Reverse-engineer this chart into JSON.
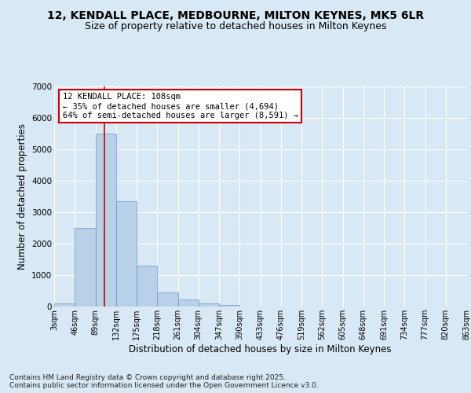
{
  "title_line1": "12, KENDALL PLACE, MEDBOURNE, MILTON KEYNES, MK5 6LR",
  "title_line2": "Size of property relative to detached houses in Milton Keynes",
  "xlabel": "Distribution of detached houses by size in Milton Keynes",
  "ylabel": "Number of detached properties",
  "footer_line1": "Contains HM Land Registry data © Crown copyright and database right 2025.",
  "footer_line2": "Contains public sector information licensed under the Open Government Licence v3.0.",
  "bar_color": "#b8d0e8",
  "bar_edge_color": "#6699cc",
  "background_color": "#d8e8f4",
  "plot_bg_color": "#d8e8f4",
  "annotation_box_color": "#cc0000",
  "vline_color": "#cc0000",
  "vline_x": 108,
  "annotation_text_line1": "12 KENDALL PLACE: 108sqm",
  "annotation_text_line2": "← 35% of detached houses are smaller (4,694)",
  "annotation_text_line3": "64% of semi-detached houses are larger (8,591) →",
  "bin_edges": [
    3,
    46,
    89,
    132,
    175,
    218,
    261,
    304,
    347,
    390,
    433,
    476,
    519,
    562,
    605,
    648,
    691,
    734,
    777,
    820,
    863
  ],
  "bar_heights": [
    100,
    2500,
    5500,
    3350,
    1300,
    450,
    230,
    100,
    50,
    0,
    0,
    0,
    0,
    0,
    0,
    0,
    0,
    0,
    0,
    0
  ],
  "ylim": [
    0,
    7000
  ],
  "yticks": [
    0,
    1000,
    2000,
    3000,
    4000,
    5000,
    6000,
    7000
  ],
  "tick_labels": [
    "3sqm",
    "46sqm",
    "89sqm",
    "132sqm",
    "175sqm",
    "218sqm",
    "261sqm",
    "304sqm",
    "347sqm",
    "390sqm",
    "433sqm",
    "476sqm",
    "519sqm",
    "562sqm",
    "605sqm",
    "648sqm",
    "691sqm",
    "734sqm",
    "777sqm",
    "820sqm",
    "863sqm"
  ],
  "title_fontsize": 10,
  "subtitle_fontsize": 9,
  "axis_label_fontsize": 8.5,
  "tick_fontsize": 7.5,
  "footer_fontsize": 6.5
}
